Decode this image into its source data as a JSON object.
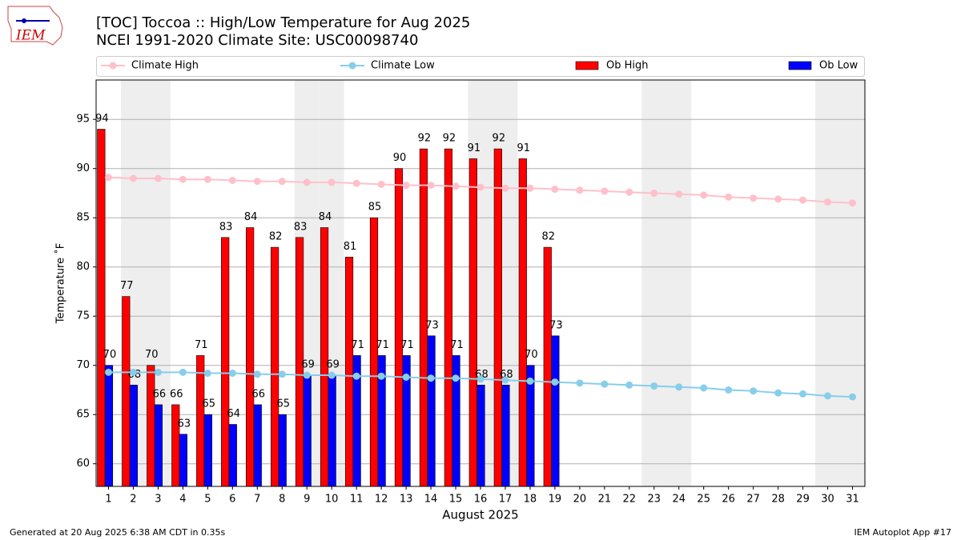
{
  "chart_data": {
    "type": "bar",
    "title": "[TOC] Toccoa :: High/Low Temperature for Aug 2025",
    "subtitle": "NCEI 1991-2020 Climate Site: USC00098740",
    "logo_text": "IEM",
    "xlabel": "August 2025",
    "ylabel": "Temperature ˚F",
    "footer_left": "Generated at 20 Aug 2025 6:38 AM CDT in 0.35s",
    "footer_right": "IEM Autoplot App #17",
    "x": [
      1,
      2,
      3,
      4,
      5,
      6,
      7,
      8,
      9,
      10,
      11,
      12,
      13,
      14,
      15,
      16,
      17,
      18,
      19,
      20,
      21,
      22,
      23,
      24,
      25,
      26,
      27,
      28,
      29,
      30,
      31
    ],
    "xlim": [
      0.5,
      31.5
    ],
    "xticks": [
      1,
      2,
      3,
      4,
      5,
      6,
      7,
      8,
      9,
      10,
      11,
      12,
      13,
      14,
      15,
      16,
      17,
      18,
      19,
      20,
      21,
      22,
      23,
      24,
      25,
      26,
      27,
      28,
      29,
      30,
      31
    ],
    "ylim": [
      57.7,
      99
    ],
    "yticks": [
      60,
      65,
      70,
      75,
      80,
      85,
      90,
      95
    ],
    "grid": true,
    "shaded_days": [
      2,
      3,
      9,
      10,
      16,
      17,
      23,
      24,
      30,
      31
    ],
    "series": [
      {
        "name": "Climate High",
        "kind": "line",
        "color": "#ffc0cb",
        "values": [
          89.1,
          89.0,
          89.0,
          88.9,
          88.9,
          88.8,
          88.7,
          88.7,
          88.6,
          88.6,
          88.5,
          88.4,
          88.3,
          88.3,
          88.2,
          88.1,
          88.0,
          88.0,
          87.9,
          87.8,
          87.7,
          87.6,
          87.5,
          87.4,
          87.3,
          87.1,
          87.0,
          86.9,
          86.8,
          86.6,
          86.5
        ]
      },
      {
        "name": "Climate Low",
        "kind": "line",
        "color": "#87ceeb",
        "values": [
          69.3,
          69.3,
          69.3,
          69.3,
          69.2,
          69.2,
          69.1,
          69.1,
          69.0,
          69.0,
          68.9,
          68.9,
          68.8,
          68.7,
          68.7,
          68.6,
          68.5,
          68.4,
          68.3,
          68.2,
          68.1,
          68.0,
          67.9,
          67.8,
          67.7,
          67.5,
          67.4,
          67.2,
          67.1,
          66.9,
          66.8
        ]
      },
      {
        "name": "Ob High",
        "kind": "bar",
        "color": "#ff0000",
        "values": [
          94,
          77,
          70,
          66,
          71,
          83,
          84,
          82,
          83,
          84,
          81,
          85,
          90,
          92,
          92,
          91,
          92,
          91,
          82,
          null,
          null,
          null,
          null,
          null,
          null,
          null,
          null,
          null,
          null,
          null,
          null
        ]
      },
      {
        "name": "Ob Low",
        "kind": "bar",
        "color": "#0000ff",
        "values": [
          70,
          68,
          66,
          63,
          65,
          64,
          66,
          65,
          69,
          69,
          71,
          71,
          71,
          73,
          71,
          68,
          68,
          70,
          73,
          null,
          null,
          null,
          null,
          null,
          null,
          null,
          null,
          null,
          null,
          null,
          null
        ]
      }
    ]
  }
}
